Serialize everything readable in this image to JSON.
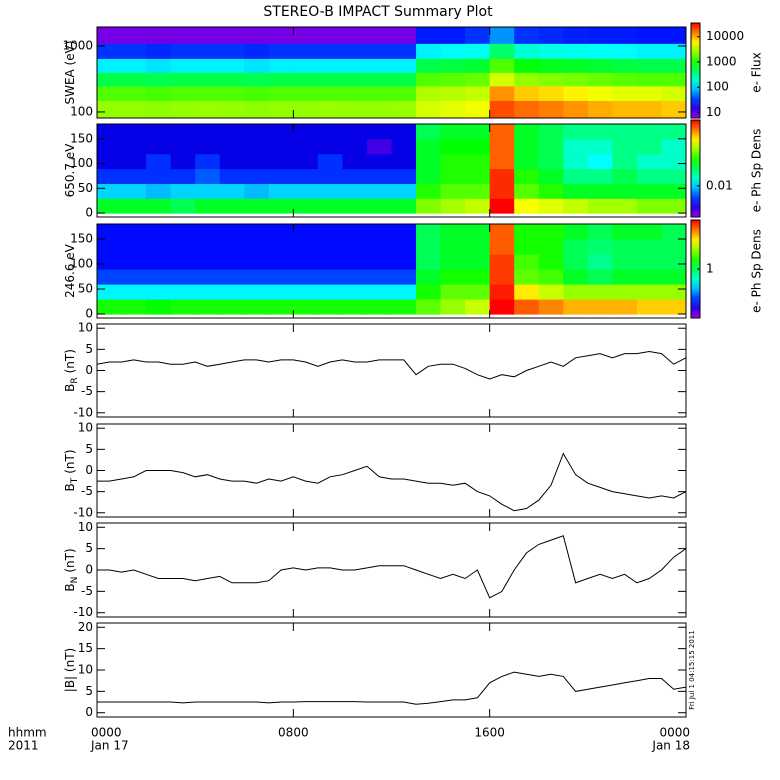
{
  "chart_data": [
    {
      "type": "heatmap",
      "title": "STEREO-B IMPACT Summary Plot",
      "ylabel": "SWEA (eV)",
      "ylog": true,
      "ylim": [
        81,
        1940
      ],
      "yticks": [
        100,
        1000
      ],
      "xbins": [
        0,
        1,
        2,
        3,
        4,
        5,
        6,
        7,
        8,
        9,
        10,
        11,
        12,
        13,
        14,
        15,
        16,
        17,
        18,
        19,
        20,
        21,
        22,
        23,
        24
      ],
      "ybins": [
        81,
        150,
        250,
        400,
        650,
        1100,
        1940
      ],
      "clabel": "e- Flux",
      "clog": true,
      "clim": [
        6,
        35000
      ],
      "cticks": [
        10,
        100,
        1000,
        10000
      ],
      "z": [
        [
          2500,
          2500,
          2400,
          2500,
          2600,
          2500,
          2400,
          2500,
          2500,
          2600,
          2500,
          2500,
          2600,
          4000,
          4500,
          5000,
          20000,
          16000,
          14000,
          12000,
          10000,
          9000,
          9000,
          8000
        ],
        [
          1500,
          1500,
          1400,
          1500,
          1500,
          1500,
          1400,
          1500,
          1500,
          1500,
          1500,
          1500,
          1500,
          3000,
          3200,
          3500,
          12000,
          8000,
          7000,
          6000,
          5000,
          4500,
          4500,
          4000
        ],
        [
          500,
          500,
          480,
          500,
          500,
          500,
          480,
          500,
          500,
          500,
          500,
          500,
          500,
          1500,
          1600,
          1800,
          4000,
          2500,
          2200,
          2000,
          1800,
          1600,
          1500,
          1500
        ],
        [
          120,
          120,
          110,
          120,
          120,
          120,
          110,
          120,
          120,
          120,
          120,
          120,
          120,
          500,
          550,
          600,
          1500,
          800,
          700,
          650,
          600,
          550,
          500,
          500
        ],
        [
          30,
          30,
          28,
          30,
          30,
          30,
          28,
          30,
          30,
          30,
          30,
          30,
          30,
          120,
          130,
          150,
          400,
          180,
          160,
          150,
          140,
          130,
          120,
          120
        ],
        [
          8,
          8,
          8,
          8,
          8,
          8,
          8,
          8,
          8,
          8,
          8,
          8,
          8,
          25,
          25,
          30,
          60,
          30,
          28,
          26,
          25,
          25,
          24,
          24
        ]
      ]
    },
    {
      "type": "heatmap",
      "ylabel": "650.7 eV",
      "ylog": false,
      "ylim": [
        -8,
        180
      ],
      "yticks": [
        0,
        50,
        100,
        150
      ],
      "xbins": [
        0,
        1,
        2,
        3,
        4,
        5,
        6,
        7,
        8,
        9,
        10,
        11,
        12,
        13,
        14,
        15,
        16,
        17,
        18,
        19,
        20,
        21,
        22,
        23,
        24
      ],
      "ybins": [
        0,
        30,
        60,
        90,
        120,
        150,
        180
      ],
      "clabel": "e- Ph Sp Dens",
      "clog": true,
      "clim": [
        0.002,
        0.3
      ],
      "cticks": [
        0.01
      ],
      "z": [
        [
          0.03,
          0.03,
          0.03,
          0.025,
          0.03,
          0.03,
          0.03,
          0.03,
          0.03,
          0.03,
          0.03,
          0.03,
          0.03,
          0.06,
          0.07,
          0.08,
          0.3,
          0.1,
          0.09,
          0.08,
          0.07,
          0.07,
          0.06,
          0.06
        ],
        [
          0.01,
          0.01,
          0.009,
          0.01,
          0.01,
          0.01,
          0.009,
          0.01,
          0.01,
          0.01,
          0.01,
          0.01,
          0.01,
          0.04,
          0.05,
          0.05,
          0.25,
          0.05,
          0.04,
          0.03,
          0.03,
          0.03,
          0.03,
          0.03
        ],
        [
          0.005,
          0.005,
          0.005,
          0.005,
          0.006,
          0.005,
          0.005,
          0.005,
          0.005,
          0.005,
          0.005,
          0.005,
          0.005,
          0.03,
          0.04,
          0.04,
          0.25,
          0.04,
          0.03,
          0.02,
          0.02,
          0.025,
          0.02,
          0.02
        ],
        [
          0.004,
          0.004,
          0.005,
          0.004,
          0.005,
          0.004,
          0.004,
          0.004,
          0.004,
          0.005,
          0.004,
          0.004,
          0.004,
          0.03,
          0.04,
          0.04,
          0.2,
          0.03,
          0.025,
          0.015,
          0.012,
          0.02,
          0.015,
          0.015
        ],
        [
          0.004,
          0.004,
          0.004,
          0.004,
          0.004,
          0.004,
          0.004,
          0.004,
          0.004,
          0.004,
          0.004,
          0.003,
          0.004,
          0.03,
          0.035,
          0.035,
          0.2,
          0.03,
          0.025,
          0.015,
          0.015,
          0.02,
          0.02,
          0.015
        ],
        [
          0.004,
          0.004,
          0.004,
          0.004,
          0.004,
          0.004,
          0.004,
          0.004,
          0.004,
          0.004,
          0.004,
          0.004,
          0.004,
          0.025,
          0.03,
          0.03,
          0.2,
          0.03,
          0.025,
          0.02,
          0.02,
          0.02,
          0.02,
          0.02
        ]
      ]
    },
    {
      "type": "heatmap",
      "ylabel": "246.6 eV",
      "ylog": false,
      "ylim": [
        -8,
        180
      ],
      "yticks": [
        0,
        50,
        100,
        150
      ],
      "xbins": [
        0,
        1,
        2,
        3,
        4,
        5,
        6,
        7,
        8,
        9,
        10,
        11,
        12,
        13,
        14,
        15,
        16,
        17,
        18,
        19,
        20,
        21,
        22,
        23,
        24
      ],
      "ybins": [
        0,
        30,
        60,
        90,
        120,
        150,
        180
      ],
      "clabel": "e- Ph Sp Dens",
      "clog": true,
      "clim": [
        0.1,
        10
      ],
      "cticks": [
        1
      ],
      "z": [
        [
          1.5,
          1.5,
          1.4,
          1.5,
          1.5,
          1.5,
          1.5,
          1.5,
          1.5,
          1.5,
          1.5,
          1.5,
          1.5,
          2,
          2.5,
          3,
          10,
          7,
          6,
          5,
          5,
          5,
          4.5,
          4.5
        ],
        [
          0.5,
          0.5,
          0.5,
          0.5,
          0.5,
          0.5,
          0.5,
          0.5,
          0.5,
          0.5,
          0.5,
          0.5,
          0.5,
          1.5,
          2,
          2,
          9,
          4,
          3,
          2.5,
          2.5,
          2.5,
          2.5,
          2.5
        ],
        [
          0.25,
          0.25,
          0.25,
          0.25,
          0.25,
          0.25,
          0.25,
          0.25,
          0.25,
          0.25,
          0.25,
          0.25,
          0.25,
          1.2,
          1.5,
          1.5,
          8,
          2,
          1.8,
          1.2,
          1,
          1.2,
          1.2,
          1.2
        ],
        [
          0.2,
          0.2,
          0.2,
          0.2,
          0.2,
          0.2,
          0.2,
          0.2,
          0.2,
          0.2,
          0.2,
          0.2,
          0.2,
          1,
          1.2,
          1.2,
          8,
          1.8,
          1.5,
          1,
          0.8,
          1,
          1,
          1
        ],
        [
          0.2,
          0.2,
          0.2,
          0.2,
          0.2,
          0.2,
          0.2,
          0.2,
          0.2,
          0.2,
          0.2,
          0.2,
          0.2,
          1,
          1.2,
          1.2,
          7,
          1.5,
          1.5,
          1,
          0.9,
          1,
          1,
          1
        ],
        [
          0.2,
          0.2,
          0.2,
          0.2,
          0.2,
          0.2,
          0.2,
          0.2,
          0.2,
          0.2,
          0.2,
          0.2,
          0.2,
          1,
          1.2,
          1.2,
          7,
          1.5,
          1.5,
          1.2,
          1,
          1.2,
          1.2,
          1
        ]
      ]
    },
    {
      "type": "line",
      "ylabel": "B",
      "ylabel_sub": "R",
      "ylabel_unit": "(nT)",
      "xlim": [
        0,
        24
      ],
      "ylim": [
        -11,
        11
      ],
      "yticks": [
        -10,
        -5,
        0,
        5,
        10
      ],
      "color": "#000000",
      "x": [
        0,
        0.5,
        1,
        1.5,
        2,
        2.5,
        3,
        3.5,
        4,
        4.5,
        5,
        5.5,
        6,
        6.5,
        7,
        7.5,
        8,
        8.5,
        9,
        9.5,
        10,
        10.5,
        11,
        11.5,
        12,
        12.5,
        13,
        13.5,
        14,
        14.5,
        15,
        15.5,
        16,
        16.5,
        17,
        17.5,
        18,
        18.5,
        19,
        19.5,
        20,
        20.5,
        21,
        21.5,
        22,
        22.5,
        23,
        23.5,
        24
      ],
      "values": [
        1.5,
        2,
        2,
        2.5,
        2,
        2,
        1.5,
        1.5,
        2,
        1,
        1.5,
        2,
        2.5,
        2.5,
        2,
        2.5,
        2.5,
        2,
        1,
        2,
        2.5,
        2,
        2,
        2.5,
        2.5,
        2.5,
        -1,
        1,
        1.5,
        1.5,
        0.5,
        -1,
        -2,
        -1,
        -1.5,
        0,
        1,
        2,
        1,
        3,
        3.5,
        4,
        3,
        4,
        4,
        4.5,
        4,
        1.5,
        3
      ]
    },
    {
      "type": "line",
      "ylabel": "B",
      "ylabel_sub": "T",
      "ylabel_unit": "(nT)",
      "xlim": [
        0,
        24
      ],
      "ylim": [
        -11,
        11
      ],
      "yticks": [
        -10,
        -5,
        0,
        5,
        10
      ],
      "color": "#000000",
      "x": [
        0,
        0.5,
        1,
        1.5,
        2,
        2.5,
        3,
        3.5,
        4,
        4.5,
        5,
        5.5,
        6,
        6.5,
        7,
        7.5,
        8,
        8.5,
        9,
        9.5,
        10,
        10.5,
        11,
        11.5,
        12,
        12.5,
        13,
        13.5,
        14,
        14.5,
        15,
        15.5,
        16,
        16.5,
        17,
        17.5,
        18,
        18.5,
        19,
        19.5,
        20,
        20.5,
        21,
        21.5,
        22,
        22.5,
        23,
        23.5,
        24
      ],
      "values": [
        -2.5,
        -2.5,
        -2,
        -1.5,
        0,
        0,
        0,
        -0.5,
        -1.5,
        -1,
        -2,
        -2.5,
        -2.5,
        -3,
        -2,
        -2.5,
        -1.5,
        -2.5,
        -3,
        -1.5,
        -1,
        0,
        1,
        -1.5,
        -2,
        -2,
        -2.5,
        -3,
        -3,
        -3.5,
        -3,
        -5,
        -6,
        -8,
        -9.5,
        -9,
        -7,
        -3.5,
        4,
        -1,
        -3,
        -4,
        -5,
        -5.5,
        -6,
        -6.5,
        -6,
        -6.5,
        -5
      ]
    },
    {
      "type": "line",
      "ylabel": "B",
      "ylabel_sub": "N",
      "ylabel_unit": "(nT)",
      "xlim": [
        0,
        24
      ],
      "ylim": [
        -11,
        11
      ],
      "yticks": [
        -10,
        -5,
        0,
        5,
        10
      ],
      "color": "#000000",
      "x": [
        0,
        0.5,
        1,
        1.5,
        2,
        2.5,
        3,
        3.5,
        4,
        4.5,
        5,
        5.5,
        6,
        6.5,
        7,
        7.5,
        8,
        8.5,
        9,
        9.5,
        10,
        10.5,
        11,
        11.5,
        12,
        12.5,
        13,
        13.5,
        14,
        14.5,
        15,
        15.5,
        16,
        16.5,
        17,
        17.5,
        18,
        18.5,
        19,
        19.5,
        20,
        20.5,
        21,
        21.5,
        22,
        22.5,
        23,
        23.5,
        24
      ],
      "values": [
        0,
        0,
        -0.5,
        0,
        -1,
        -2,
        -2,
        -2,
        -2.5,
        -2,
        -1.5,
        -3,
        -3,
        -3,
        -2.5,
        0,
        0.5,
        0,
        0.5,
        0.5,
        0,
        0,
        0.5,
        1,
        1,
        1,
        0,
        -1,
        -2,
        -1,
        -2,
        0,
        -6.5,
        -5,
        0,
        4,
        6,
        7,
        8,
        -3,
        -2,
        -1,
        -2,
        -1,
        -3,
        -2,
        0,
        3,
        5
      ]
    },
    {
      "type": "line",
      "ylabel": "|B| (nT)",
      "xlim": [
        0,
        24
      ],
      "ylim": [
        -1,
        21
      ],
      "yticks": [
        0,
        5,
        10,
        15,
        20
      ],
      "color": "#000000",
      "x": [
        0,
        0.5,
        1,
        1.5,
        2,
        2.5,
        3,
        3.5,
        4,
        4.5,
        5,
        5.5,
        6,
        6.5,
        7,
        7.5,
        8,
        8.5,
        9,
        9.5,
        10,
        10.5,
        11,
        11.5,
        12,
        12.5,
        13,
        13.5,
        14,
        14.5,
        15,
        15.5,
        16,
        16.5,
        17,
        17.5,
        18,
        18.5,
        19,
        19.5,
        20,
        20.5,
        21,
        21.5,
        22,
        22.5,
        23,
        23.5,
        24
      ],
      "values": [
        2.5,
        2.5,
        2.5,
        2.5,
        2.5,
        2.5,
        2.5,
        2.3,
        2.5,
        2.5,
        2.5,
        2.5,
        2.5,
        2.5,
        2.3,
        2.5,
        2.5,
        2.6,
        2.6,
        2.6,
        2.6,
        2.6,
        2.5,
        2.5,
        2.5,
        2.5,
        2,
        2.2,
        2.6,
        3,
        3,
        3.5,
        7,
        8.5,
        9.5,
        9,
        8.5,
        9,
        8.5,
        5,
        5.5,
        6,
        6.5,
        7,
        7.5,
        8,
        8,
        5.5,
        6
      ],
      "xticks": [
        {
          "value": 0,
          "label": "0000"
        },
        {
          "value": 8,
          "label": "0800"
        },
        {
          "value": 16,
          "label": "1600"
        },
        {
          "value": 24,
          "label": "0000"
        }
      ],
      "xlabel": [
        "hhmm",
        "2011"
      ],
      "date_start": "Jan 17",
      "date_end": "Jan 18",
      "annotation": "Fri Jul  1 04:15:15 2011"
    }
  ]
}
